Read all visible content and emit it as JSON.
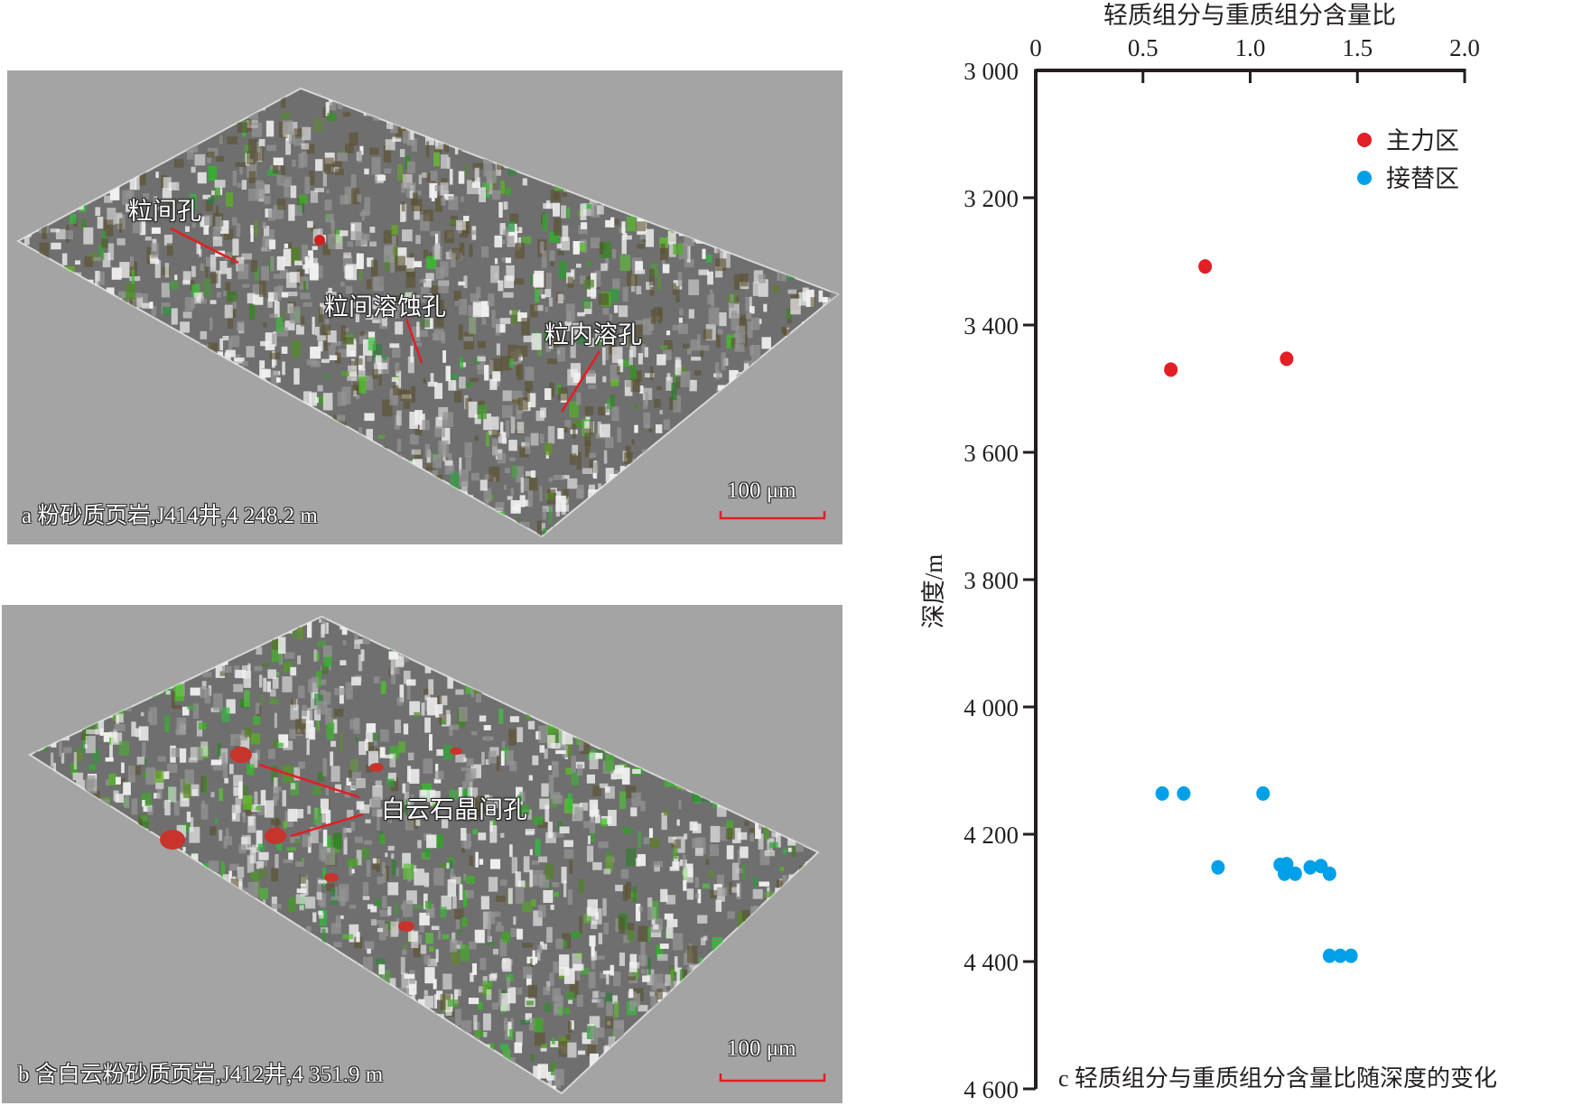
{
  "panels": [
    {
      "id": "a",
      "caption": "a 粉砂质页岩,J414井,4 248.2 m",
      "scale_bar": "100 μm",
      "annotations": [
        "粒间孔",
        "粒间溶蚀孔",
        "粒内溶孔"
      ]
    },
    {
      "id": "b",
      "caption": "b 含白云粉砂质页岩,J412井,4 351.9 m",
      "scale_bar": "100 μm",
      "annotations": [
        "白云石晶间孔"
      ]
    }
  ],
  "chart_data": {
    "type": "scatter",
    "title": "轻质组分与重质组分含量比",
    "xlabel": "轻质组分与重质组分含量比",
    "ylabel": "深度/m",
    "caption": "c 轻质组分与重质组分含量比随深度的变化",
    "xlim": [
      0,
      2.0
    ],
    "ylim": [
      3000,
      4600
    ],
    "y_inverted": true,
    "x_axis_position": "top",
    "xticks": [
      "0",
      "0.5",
      "1.0",
      "1.5",
      "2.0"
    ],
    "xtick_values": [
      0,
      0.5,
      1.0,
      1.5,
      2.0
    ],
    "yticks": [
      "3 000",
      "3 200",
      "3 400",
      "3 600",
      "3 800",
      "4 000",
      "4 200",
      "4 400",
      "4 600"
    ],
    "ytick_values": [
      3000,
      3200,
      3400,
      3600,
      3800,
      4000,
      4200,
      4400,
      4600
    ],
    "legend_position": "top-right",
    "series": [
      {
        "name": "主力区",
        "color": "#e31e24",
        "points": [
          [
            0.79,
            3308
          ],
          [
            0.63,
            3470
          ],
          [
            1.17,
            3453
          ]
        ]
      },
      {
        "name": "接替区",
        "color": "#00a0e9",
        "points": [
          [
            0.59,
            4136
          ],
          [
            0.69,
            4136
          ],
          [
            1.06,
            4136
          ],
          [
            0.85,
            4252
          ],
          [
            1.14,
            4248
          ],
          [
            1.17,
            4247
          ],
          [
            1.16,
            4262
          ],
          [
            1.21,
            4262
          ],
          [
            1.28,
            4252
          ],
          [
            1.33,
            4250
          ],
          [
            1.37,
            4262
          ],
          [
            1.37,
            4391
          ],
          [
            1.42,
            4391
          ],
          [
            1.47,
            4391
          ]
        ]
      }
    ]
  }
}
